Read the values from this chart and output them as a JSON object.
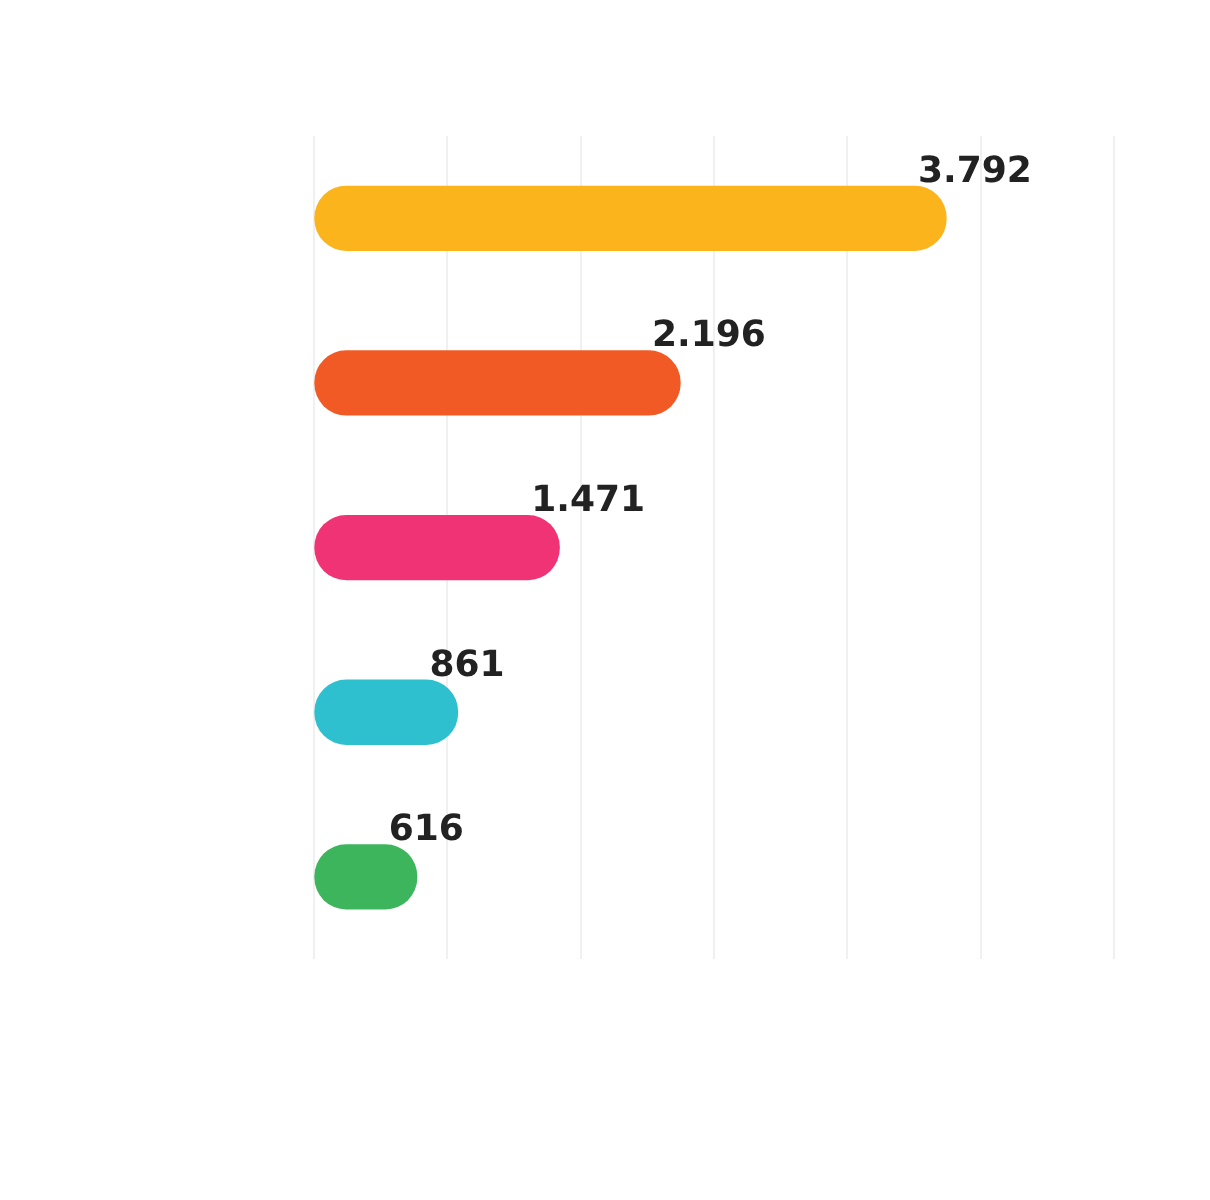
{
  "chart_data": {
    "type": "bar",
    "orientation": "horizontal",
    "categories": [
      null,
      null,
      null,
      null,
      null
    ],
    "values": [
      3792,
      2196,
      1471,
      861,
      616
    ],
    "colors": [
      "#fbb41c",
      "#f15a24",
      "#ef3374",
      "#2fc0d0",
      "#3cb55c"
    ],
    "value_labels": [
      "3.792",
      "2.196",
      "1.471",
      "861",
      "616"
    ],
    "xlim": [
      0,
      4800
    ],
    "xticks": [
      {
        "value": 0,
        "label": null
      },
      {
        "value": 800,
        "label": null
      },
      {
        "value": 1600,
        "label": null
      },
      {
        "value": 2400,
        "label": null
      },
      {
        "value": 3200,
        "label": null
      },
      {
        "value": 4000,
        "label": null
      },
      {
        "value": 4800,
        "label": null
      }
    ],
    "grid": "x"
  }
}
